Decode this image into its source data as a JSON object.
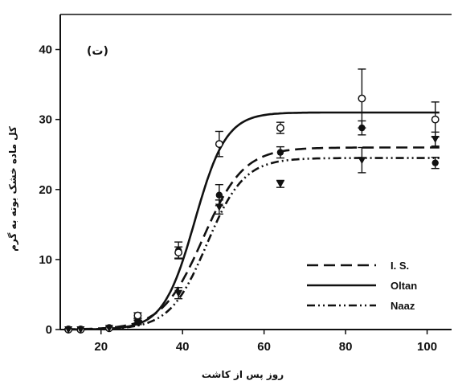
{
  "chart_data": {
    "type": "line",
    "panel_label": "(ت)",
    "xlabel": "روز پس از کاشت",
    "ylabel": "کل ماده خشک بوته به گرم",
    "xlim": [
      10,
      106
    ],
    "ylim": [
      0,
      45
    ],
    "xticks": [
      20,
      40,
      60,
      80,
      100
    ],
    "yticks": [
      0,
      10,
      20,
      30,
      40
    ],
    "legend_position": "bottom-right",
    "series": [
      {
        "name": "I. S.",
        "line_style": "dashed",
        "marker": "filled-circle",
        "fit": {
          "asymptote": 26,
          "midpoint": 45,
          "rate": 0.2
        },
        "points": [
          {
            "x": 12,
            "y": 0,
            "err": 0
          },
          {
            "x": 15,
            "y": 0,
            "err": 0
          },
          {
            "x": 22,
            "y": 0.2,
            "err": 0
          },
          {
            "x": 29,
            "y": 1.2,
            "err": 0.4
          },
          {
            "x": 39,
            "y": 11.3,
            "err": 1.2
          },
          {
            "x": 49,
            "y": 19.2,
            "err": 1.5
          },
          {
            "x": 64,
            "y": 25.3,
            "err": 0.8
          },
          {
            "x": 84,
            "y": 28.8,
            "err": 1.0
          },
          {
            "x": 102,
            "y": 23.8,
            "err": 0.8
          }
        ]
      },
      {
        "name": "Oltan",
        "line_style": "solid",
        "marker": "open-circle",
        "fit": {
          "asymptote": 31,
          "midpoint": 43,
          "rate": 0.26
        },
        "points": [
          {
            "x": 12,
            "y": 0,
            "err": 0
          },
          {
            "x": 15,
            "y": 0,
            "err": 0
          },
          {
            "x": 22,
            "y": 0.2,
            "err": 0
          },
          {
            "x": 29,
            "y": 2.0,
            "err": 0.4
          },
          {
            "x": 39,
            "y": 11.0,
            "err": 0.8
          },
          {
            "x": 49,
            "y": 26.5,
            "err": 1.8
          },
          {
            "x": 64,
            "y": 28.8,
            "err": 0.8
          },
          {
            "x": 84,
            "y": 33.0,
            "err": 4.2
          },
          {
            "x": 102,
            "y": 30.0,
            "err": 2.5
          }
        ]
      },
      {
        "name": "Naaz",
        "line_style": "dash-dot-dot",
        "marker": "filled-triangle-down",
        "fit": {
          "asymptote": 24.5,
          "midpoint": 46,
          "rate": 0.22
        },
        "points": [
          {
            "x": 12,
            "y": 0,
            "err": 0
          },
          {
            "x": 15,
            "y": 0,
            "err": 0
          },
          {
            "x": 22,
            "y": 0.2,
            "err": 0
          },
          {
            "x": 29,
            "y": 1.0,
            "err": 0.3
          },
          {
            "x": 39,
            "y": 5.2,
            "err": 0.8
          },
          {
            "x": 49,
            "y": 17.5,
            "err": 1.0
          },
          {
            "x": 64,
            "y": 20.8,
            "err": 0.5
          },
          {
            "x": 84,
            "y": 24.2,
            "err": 1.8
          },
          {
            "x": 102,
            "y": 27.2,
            "err": 1.0
          }
        ]
      }
    ],
    "colors": {
      "ink": "#111111",
      "background": "#ffffff"
    }
  }
}
